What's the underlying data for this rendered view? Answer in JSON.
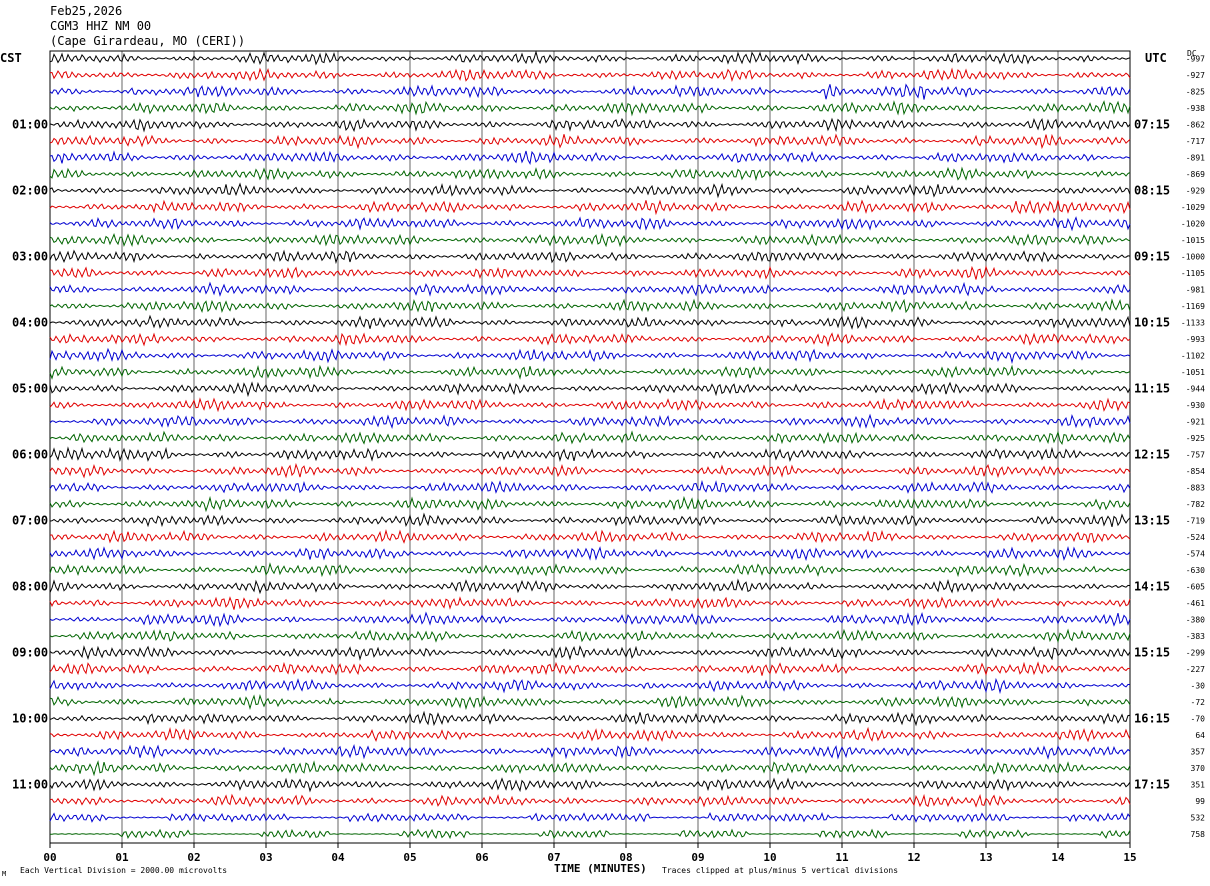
{
  "header": {
    "date": "Feb25,2026",
    "station": "CGM3 HHZ NM 00",
    "location": "(Cape Girardeau, MO (CERI))"
  },
  "left_tz": "CST",
  "right_tz": "UTC",
  "dc_label": "DC",
  "footer": {
    "left": "Each Vertical Division = 2000.00 microvolts",
    "right": "Traces clipped at plus/minus 5 vertical divisions",
    "corner": "M"
  },
  "colors": {
    "cycle": [
      "#000000",
      "#e00000",
      "#0000d0",
      "#006400"
    ],
    "grid": "#000000"
  },
  "chart_data": {
    "type": "line",
    "title": "",
    "xlabel": "TIME (MINUTES)",
    "ylabel": "",
    "x_ticks": [
      "00",
      "01",
      "02",
      "03",
      "04",
      "05",
      "06",
      "07",
      "08",
      "09",
      "10",
      "11",
      "12",
      "13",
      "14",
      "15"
    ],
    "xlim": [
      0,
      15
    ],
    "left_hour_labels": [
      "01:00",
      "02:00",
      "03:00",
      "04:00",
      "05:00",
      "06:00",
      "07:00",
      "08:00",
      "09:00",
      "10:00",
      "11:00"
    ],
    "right_hour_labels": [
      "07:15",
      "08:15",
      "09:15",
      "10:15",
      "11:15",
      "12:15",
      "13:15",
      "14:15",
      "15:15",
      "16:15",
      "17:15"
    ],
    "trace_dc_offsets": [
      "-997",
      "-927",
      "-825",
      "-938",
      "-862",
      "-717",
      "-891",
      "-869",
      "-929",
      "-1029",
      "-1020",
      "-1015",
      "-1000",
      "-1105",
      "-981",
      "-1169",
      "-1133",
      "-993",
      "-1102",
      "-1051",
      "-944",
      "-930",
      "-921",
      "-925",
      "-757",
      "-854",
      "-883",
      "-782",
      "-719",
      "-524",
      "-574",
      "-630",
      "-605",
      "-461",
      "-380",
      "-383",
      "-299",
      "-227",
      "-30",
      "-72",
      "-70",
      "64",
      "357",
      "370",
      "351",
      "99",
      "532",
      "758"
    ],
    "trace_count": 48,
    "minutes_per_trace": 15
  }
}
